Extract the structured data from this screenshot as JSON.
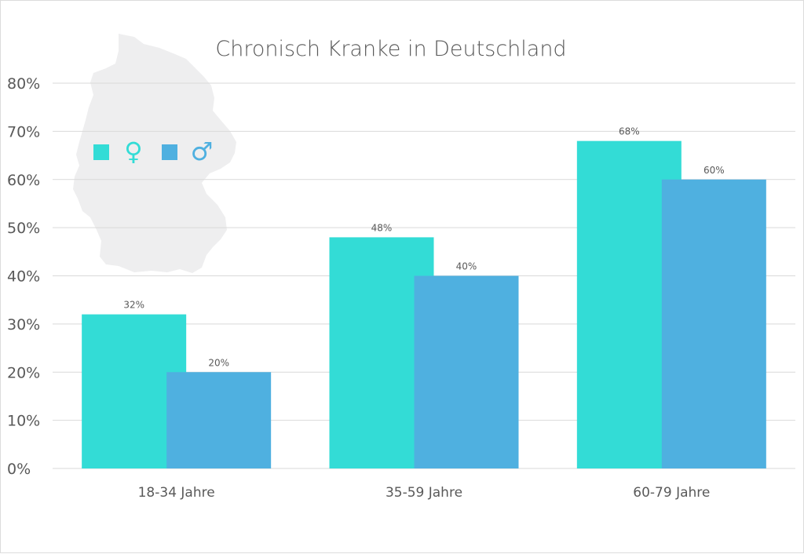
{
  "chart_data": {
    "type": "bar",
    "title": "Chronisch Kranke in Deutschland",
    "categories": [
      "18-34 Jahre",
      "35-59 Jahre",
      "60-79 Jahre"
    ],
    "series": [
      {
        "name": "♀",
        "color": "#33dcd6",
        "values": [
          32,
          48,
          68
        ],
        "labels": [
          "32%",
          "48%",
          "68%"
        ]
      },
      {
        "name": "♂",
        "color": "#4fb0e0",
        "values": [
          20,
          40,
          60
        ],
        "labels": [
          "20%",
          "40%",
          "60%"
        ]
      }
    ],
    "ylim": [
      0,
      80
    ],
    "yticks": [
      0,
      10,
      20,
      30,
      40,
      50,
      60,
      70,
      80
    ],
    "ytick_labels": [
      "0%",
      "10%",
      "20%",
      "30%",
      "40%",
      "50%",
      "60%",
      "70%",
      "80%"
    ],
    "xlabel": "",
    "ylabel": "",
    "grid": true,
    "legend_position": "top-left",
    "background_image": "germany-map"
  }
}
